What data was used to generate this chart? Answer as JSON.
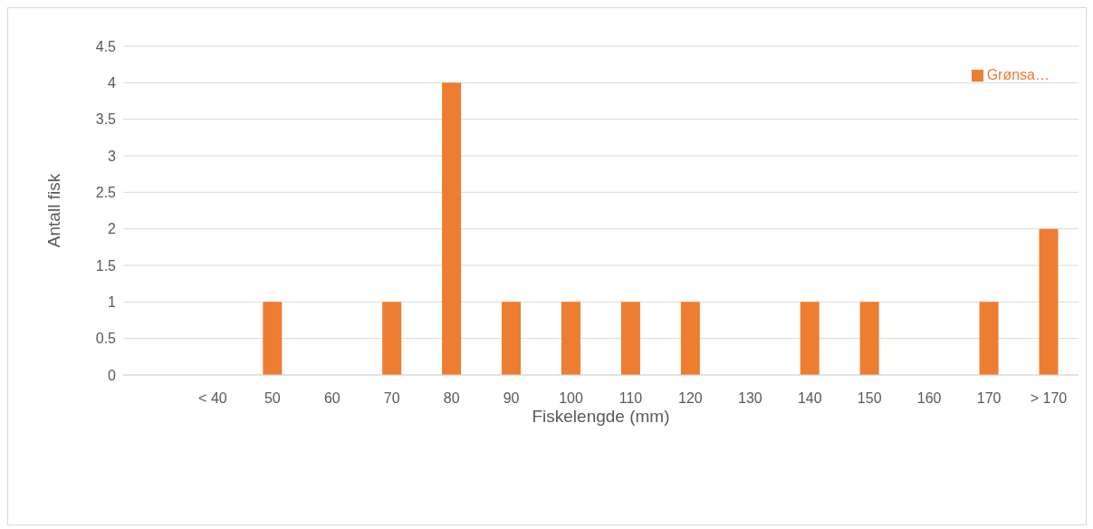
{
  "chart_data": {
    "type": "bar",
    "xlabel": "Fiskelengde (mm)",
    "ylabel": "Antall fisk",
    "categories": [
      null,
      "< 40",
      "50",
      "60",
      "70",
      "80",
      "90",
      "100",
      "110",
      "120",
      "130",
      "140",
      "150",
      "160",
      "170",
      "> 170"
    ],
    "series": [
      {
        "name": "Grønsa…",
        "color": "#ed7d31",
        "values": [
          0,
          0,
          1,
          0,
          1,
          4,
          1,
          1,
          1,
          1,
          0,
          1,
          1,
          0,
          1,
          2
        ]
      }
    ],
    "ylim": [
      0,
      4.5
    ],
    "yticks": [
      0,
      0.5,
      1,
      1.5,
      2,
      2.5,
      3,
      3.5,
      4,
      4.5
    ],
    "grid": "y",
    "legend": "top right"
  }
}
